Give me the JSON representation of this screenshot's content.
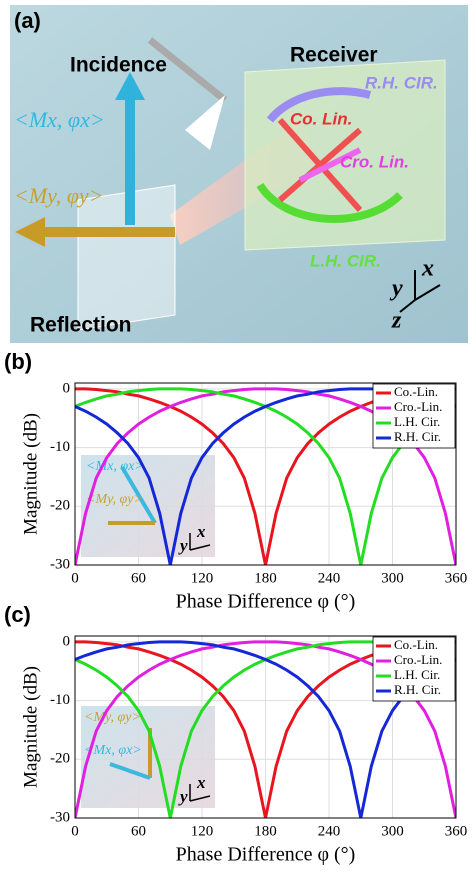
{
  "panel_a": {
    "label": "(a)",
    "incidence": "Incidence",
    "receiver": "Receiver",
    "reflection": "Reflection",
    "rh_cir": "R.H. CIR.",
    "lh_cir": "L.H. CIR.",
    "co_lin": "Co. Lin.",
    "cro_lin": "Cro. Lin.",
    "mx": "<Mx, φx>",
    "my": "<My, φy>",
    "axis_x": "x",
    "axis_y": "y",
    "axis_z": "z"
  },
  "chart_data": [
    {
      "type": "line",
      "panel_label": "(b)",
      "x_label": "Phase Difference φ (°)",
      "y_label": "Magnitude (dB)",
      "inset_labels": [
        "<Mx, φx>",
        "<My, φy>",
        "x",
        "y"
      ],
      "x": [
        0,
        10,
        20,
        30,
        40,
        50,
        60,
        70,
        80,
        90,
        100,
        110,
        120,
        130,
        140,
        150,
        160,
        170,
        180,
        190,
        200,
        210,
        220,
        230,
        240,
        250,
        260,
        270,
        280,
        290,
        300,
        310,
        320,
        330,
        340,
        350,
        360
      ],
      "xlim": [
        0,
        360
      ],
      "xticks": [
        0,
        60,
        120,
        180,
        240,
        300,
        360
      ],
      "ylim": [
        -30,
        1
      ],
      "yticks": [
        -30,
        -20,
        -10,
        0
      ],
      "grid": true,
      "legend": "upper right",
      "series": [
        {
          "name": "Co.-Lin.",
          "color": "#e8141e",
          "values": [
            0,
            0,
            -0.1,
            -0.3,
            -0.5,
            -0.9,
            -1.2,
            -1.7,
            -2.3,
            -3.0,
            -3.8,
            -4.8,
            -6.0,
            -7.5,
            -9.3,
            -11.7,
            -15.2,
            -21.2,
            -30,
            -21.2,
            -15.2,
            -11.7,
            -9.3,
            -7.5,
            -6.0,
            -4.8,
            -3.8,
            -3.0,
            -2.3,
            -1.7,
            -1.2,
            -0.9,
            -0.5,
            -0.3,
            -0.1,
            0,
            0
          ]
        },
        {
          "name": "Cro.-Lin.",
          "color": "#e020e0",
          "values": [
            -30,
            -21.2,
            -15.2,
            -11.7,
            -9.3,
            -7.5,
            -6.0,
            -4.8,
            -3.8,
            -3.0,
            -2.3,
            -1.7,
            -1.2,
            -0.9,
            -0.5,
            -0.3,
            -0.1,
            0,
            0,
            0,
            -0.1,
            -0.3,
            -0.5,
            -0.9,
            -1.2,
            -1.7,
            -2.3,
            -3.0,
            -3.8,
            -4.8,
            -6.0,
            -7.5,
            -9.3,
            -11.7,
            -15.2,
            -21.2,
            -30
          ]
        },
        {
          "name": "L.H. Cir.",
          "color": "#22dd22",
          "values": [
            -3.0,
            -2.3,
            -1.7,
            -1.2,
            -0.9,
            -0.5,
            -0.3,
            -0.1,
            0,
            0,
            0,
            -0.1,
            -0.3,
            -0.5,
            -0.9,
            -1.2,
            -1.7,
            -2.3,
            -3.0,
            -3.8,
            -4.8,
            -6.0,
            -7.5,
            -9.3,
            -11.7,
            -15.2,
            -21.2,
            -30,
            -21.2,
            -15.2,
            -11.7,
            -9.3,
            -7.5,
            -6.0,
            -4.8,
            -3.8,
            -3.0
          ]
        },
        {
          "name": "R.H. Cir.",
          "color": "#1428d8",
          "values": [
            -3.0,
            -3.8,
            -4.8,
            -6.0,
            -7.5,
            -9.3,
            -11.7,
            -15.2,
            -21.2,
            -30,
            -21.2,
            -15.2,
            -11.7,
            -9.3,
            -7.5,
            -6.0,
            -4.8,
            -3.8,
            -3.0,
            -2.3,
            -1.7,
            -1.2,
            -0.9,
            -0.5,
            -0.3,
            -0.1,
            0,
            0,
            0,
            -0.1,
            -0.3,
            -0.5,
            -0.9,
            -1.2,
            -1.7,
            -2.3,
            -3.0
          ]
        }
      ]
    },
    {
      "type": "line",
      "panel_label": "(c)",
      "x_label": "Phase Difference φ (°)",
      "y_label": "Magnitude (dB)",
      "inset_labels": [
        "<My, φy>",
        "<Mx, φx>",
        "x",
        "y"
      ],
      "x": [
        0,
        10,
        20,
        30,
        40,
        50,
        60,
        70,
        80,
        90,
        100,
        110,
        120,
        130,
        140,
        150,
        160,
        170,
        180,
        190,
        200,
        210,
        220,
        230,
        240,
        250,
        260,
        270,
        280,
        290,
        300,
        310,
        320,
        330,
        340,
        350,
        360
      ],
      "xlim": [
        0,
        360
      ],
      "xticks": [
        0,
        60,
        120,
        180,
        240,
        300,
        360
      ],
      "ylim": [
        -30,
        1
      ],
      "yticks": [
        -30,
        -20,
        -10,
        0
      ],
      "grid": true,
      "legend": "upper right",
      "series": [
        {
          "name": "Co.-Lin.",
          "color": "#e8141e",
          "values": [
            0,
            0,
            -0.1,
            -0.3,
            -0.5,
            -0.9,
            -1.2,
            -1.7,
            -2.3,
            -3.0,
            -3.8,
            -4.8,
            -6.0,
            -7.5,
            -9.3,
            -11.7,
            -15.2,
            -21.2,
            -30,
            -21.2,
            -15.2,
            -11.7,
            -9.3,
            -7.5,
            -6.0,
            -4.8,
            -3.8,
            -3.0,
            -2.3,
            -1.7,
            -1.2,
            -0.9,
            -0.5,
            -0.3,
            -0.1,
            0,
            0
          ]
        },
        {
          "name": "Cro.-Lin.",
          "color": "#e020e0",
          "values": [
            -30,
            -21.2,
            -15.2,
            -11.7,
            -9.3,
            -7.5,
            -6.0,
            -4.8,
            -3.8,
            -3.0,
            -2.3,
            -1.7,
            -1.2,
            -0.9,
            -0.5,
            -0.3,
            -0.1,
            0,
            0,
            0,
            -0.1,
            -0.3,
            -0.5,
            -0.9,
            -1.2,
            -1.7,
            -2.3,
            -3.0,
            -3.8,
            -4.8,
            -6.0,
            -7.5,
            -9.3,
            -11.7,
            -15.2,
            -21.2,
            -30
          ]
        },
        {
          "name": "L.H. Cir.",
          "color": "#22dd22",
          "values": [
            -3.0,
            -3.8,
            -4.8,
            -6.0,
            -7.5,
            -9.3,
            -11.7,
            -15.2,
            -21.2,
            -30,
            -21.2,
            -15.2,
            -11.7,
            -9.3,
            -7.5,
            -6.0,
            -4.8,
            -3.8,
            -3.0,
            -2.3,
            -1.7,
            -1.2,
            -0.9,
            -0.5,
            -0.3,
            -0.1,
            0,
            0,
            0,
            -0.1,
            -0.3,
            -0.5,
            -0.9,
            -1.2,
            -1.7,
            -2.3,
            -3.0
          ]
        },
        {
          "name": "R.H. Cir.",
          "color": "#1428d8",
          "values": [
            -3.0,
            -2.3,
            -1.7,
            -1.2,
            -0.9,
            -0.5,
            -0.3,
            -0.1,
            0,
            0,
            0,
            -0.1,
            -0.3,
            -0.5,
            -0.9,
            -1.2,
            -1.7,
            -2.3,
            -3.0,
            -3.8,
            -4.8,
            -6.0,
            -7.5,
            -9.3,
            -11.7,
            -15.2,
            -21.2,
            -30,
            -21.2,
            -15.2,
            -11.7,
            -9.3,
            -7.5,
            -6.0,
            -4.8,
            -3.8,
            -3.0
          ]
        }
      ]
    }
  ]
}
